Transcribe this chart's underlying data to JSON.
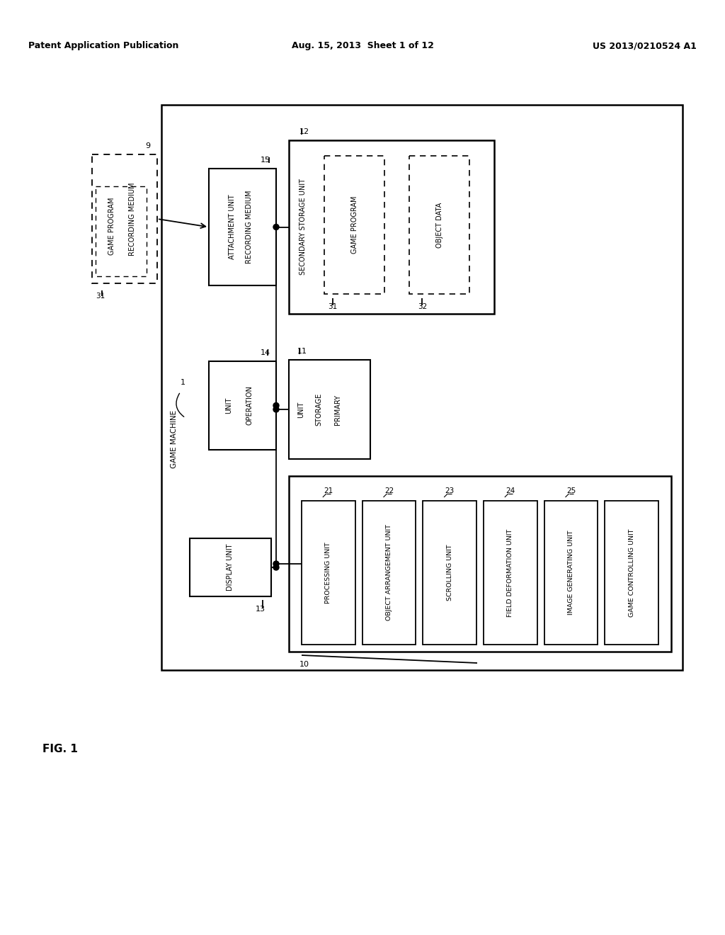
{
  "header_left": "Patent Application Publication",
  "header_mid": "Aug. 15, 2013  Sheet 1 of 12",
  "header_right": "US 2013/0210524 A1",
  "fig_label": "FIG. 1",
  "bg_color": "#ffffff",
  "line_color": "#000000",
  "fig_width": 10.24,
  "fig_height": 13.2
}
